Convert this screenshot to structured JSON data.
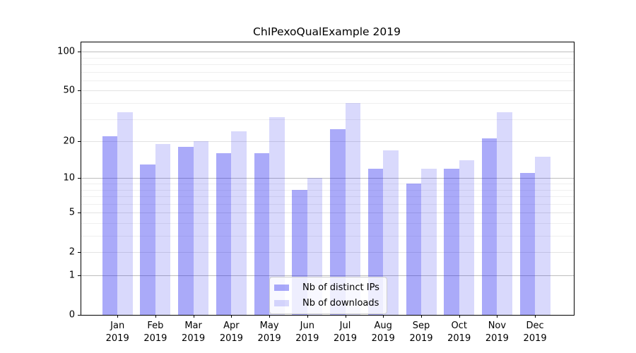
{
  "chart_data": {
    "type": "bar",
    "title": "ChIPexoQualExample 2019",
    "categories": [
      "Jan",
      "Feb",
      "Mar",
      "Apr",
      "May",
      "Jun",
      "Jul",
      "Aug",
      "Sep",
      "Oct",
      "Nov",
      "Dec"
    ],
    "category_year": "2019",
    "series": [
      {
        "name": "Nb of distinct IPs",
        "color": "rgba(32,32,238,0.38)",
        "values": [
          22,
          13,
          18,
          16,
          16,
          8,
          25,
          12,
          9,
          12,
          21,
          11
        ]
      },
      {
        "name": "Nb of downloads",
        "color": "rgba(32,32,238,0.17)",
        "values": [
          34,
          19,
          20,
          24,
          31,
          10,
          40,
          17,
          12,
          14,
          34,
          15
        ]
      }
    ],
    "xlabel": "",
    "ylabel": "",
    "yscale": "log1p",
    "ylim": [
      0,
      118
    ],
    "yticks": [
      0,
      1,
      2,
      5,
      10,
      20,
      50,
      100
    ],
    "yticks_minor": [
      3,
      4,
      6,
      7,
      8,
      9,
      30,
      40,
      60,
      70,
      80,
      90
    ],
    "grid": {
      "decade_lines": [
        1,
        10,
        100
      ],
      "decade_color": "#bdbdbd",
      "labeled_color": "#e3e3e3",
      "minor_color": "#efefef"
    },
    "legend": {
      "position": "lower center",
      "entries": [
        "Nb of distinct IPs",
        "Nb of downloads"
      ]
    }
  }
}
